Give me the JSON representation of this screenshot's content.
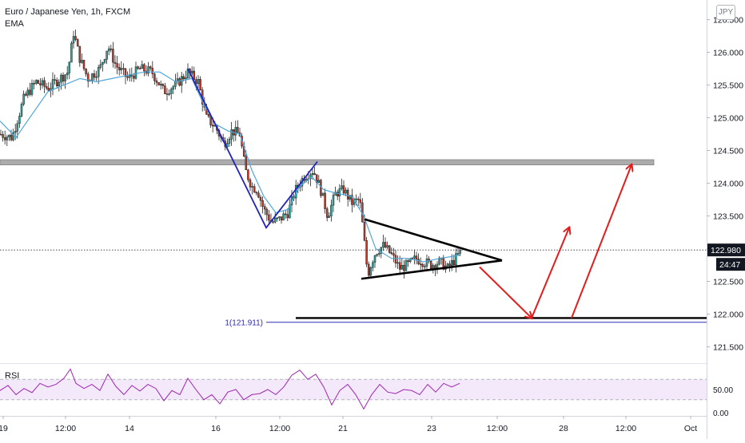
{
  "header": {
    "symbol_title": "Euro / Japanese Yen, 1h, FXCM",
    "indicator": "EMA",
    "currency_badge": "JPY"
  },
  "rsi_panel": {
    "label": "RSI",
    "ticks": [
      "50.00",
      "0.00"
    ]
  },
  "price_scale": {
    "current_price": "122.980",
    "countdown": "24:47"
  },
  "fib_label": "1(121.911)",
  "colors": {
    "bull": "#26a69a",
    "bear": "#c0392b",
    "ema": "#4fa6d9",
    "rsi": "#9c27b0",
    "pattern_blue": "#2222bb",
    "arrows": "#e31b1b",
    "resistance_band": "#9e9e9e"
  },
  "chart_data": {
    "type": "candlestick",
    "title": "Euro / Japanese Yen, 1h, FXCM",
    "y_axis": {
      "ticks": [
        126.5,
        126.0,
        125.5,
        125.0,
        124.5,
        124.0,
        123.5,
        123.0,
        122.5,
        122.0,
        121.5
      ],
      "range": [
        121.25,
        126.8
      ]
    },
    "x_axis": {
      "ticks": [
        "19",
        "12:00",
        "14",
        "16",
        "12:00",
        "21",
        "23",
        "12:00",
        "28",
        "12:00",
        "Oct"
      ]
    },
    "ema_curve": [
      [
        0,
        124.95
      ],
      [
        20,
        124.7
      ],
      [
        40,
        125.05
      ],
      [
        60,
        125.4
      ],
      [
        80,
        125.5
      ],
      [
        100,
        125.6
      ],
      [
        120,
        125.55
      ],
      [
        140,
        125.6
      ],
      [
        160,
        125.65
      ],
      [
        180,
        125.7
      ],
      [
        200,
        125.7
      ],
      [
        220,
        125.55
      ],
      [
        240,
        125.6
      ],
      [
        255,
        125.2
      ],
      [
        270,
        124.9
      ],
      [
        285,
        124.8
      ],
      [
        300,
        124.75
      ],
      [
        315,
        124.2
      ],
      [
        330,
        123.8
      ],
      [
        345,
        123.55
      ],
      [
        360,
        123.6
      ],
      [
        375,
        123.95
      ],
      [
        390,
        124.1
      ],
      [
        405,
        123.9
      ],
      [
        420,
        123.85
      ],
      [
        440,
        123.8
      ],
      [
        455,
        123.5
      ],
      [
        470,
        123.0
      ],
      [
        490,
        122.85
      ],
      [
        510,
        122.85
      ],
      [
        530,
        122.8
      ],
      [
        550,
        122.85
      ],
      [
        575,
        122.9
      ]
    ],
    "key_points": [
      [
        0,
        124.75
      ],
      [
        15,
        124.7
      ],
      [
        30,
        125.3
      ],
      [
        45,
        125.55
      ],
      [
        60,
        125.45
      ],
      [
        75,
        125.6
      ],
      [
        85,
        125.7
      ],
      [
        92,
        126.3
      ],
      [
        100,
        125.9
      ],
      [
        110,
        125.6
      ],
      [
        125,
        125.75
      ],
      [
        135,
        126.1
      ],
      [
        145,
        125.8
      ],
      [
        160,
        125.6
      ],
      [
        175,
        125.75
      ],
      [
        190,
        125.7
      ],
      [
        205,
        125.4
      ],
      [
        220,
        125.5
      ],
      [
        235,
        125.7
      ],
      [
        248,
        125.55
      ],
      [
        258,
        125.0
      ],
      [
        270,
        124.85
      ],
      [
        280,
        124.6
      ],
      [
        290,
        124.8
      ],
      [
        300,
        124.75
      ],
      [
        307,
        124.2
      ],
      [
        315,
        123.95
      ],
      [
        322,
        123.9
      ],
      [
        330,
        123.6
      ],
      [
        340,
        123.4
      ],
      [
        350,
        123.45
      ],
      [
        360,
        123.55
      ],
      [
        370,
        123.9
      ],
      [
        380,
        124.1
      ],
      [
        392,
        124.2
      ],
      [
        400,
        123.95
      ],
      [
        410,
        123.5
      ],
      [
        420,
        123.85
      ],
      [
        430,
        123.9
      ],
      [
        440,
        123.7
      ],
      [
        450,
        123.75
      ],
      [
        455,
        123.2
      ],
      [
        460,
        122.6
      ],
      [
        465,
        122.8
      ],
      [
        470,
        122.95
      ],
      [
        480,
        123.05
      ],
      [
        490,
        122.9
      ],
      [
        500,
        122.7
      ],
      [
        510,
        122.75
      ],
      [
        520,
        122.85
      ],
      [
        530,
        122.8
      ],
      [
        540,
        122.75
      ],
      [
        550,
        122.8
      ],
      [
        560,
        122.7
      ],
      [
        570,
        122.85
      ],
      [
        578,
        122.98
      ]
    ],
    "resistance_band": [
      124.28,
      124.36
    ],
    "support_line": 121.94,
    "fib_level": 121.911,
    "current_price": 122.98,
    "descending_channel_line": [
      [
        235,
        125.75
      ],
      [
        333,
        123.32
      ],
      [
        397,
        124.33
      ]
    ],
    "triangle": {
      "upper": [
        [
          456,
          123.45
        ],
        [
          628,
          122.82
        ]
      ],
      "lower": [
        [
          452,
          122.54
        ],
        [
          628,
          122.82
        ]
      ]
    },
    "projection_arrows": [
      [
        [
          600,
          122.72
        ],
        [
          665,
          121.94
        ]
      ],
      [
        [
          665,
          121.94
        ],
        [
          712,
          123.32
        ]
      ],
      [
        [
          715,
          121.94
        ],
        [
          790,
          124.28
        ]
      ]
    ],
    "rsi": {
      "range": [
        0,
        100
      ],
      "levels": [
        70,
        30
      ],
      "curve": [
        [
          0,
          48
        ],
        [
          10,
          58
        ],
        [
          20,
          40
        ],
        [
          30,
          52
        ],
        [
          40,
          44
        ],
        [
          50,
          62
        ],
        [
          60,
          55
        ],
        [
          70,
          60
        ],
        [
          80,
          72
        ],
        [
          88,
          90
        ],
        [
          95,
          62
        ],
        [
          105,
          52
        ],
        [
          115,
          60
        ],
        [
          125,
          48
        ],
        [
          135,
          80
        ],
        [
          145,
          56
        ],
        [
          155,
          40
        ],
        [
          165,
          58
        ],
        [
          175,
          47
        ],
        [
          185,
          60
        ],
        [
          195,
          52
        ],
        [
          205,
          28
        ],
        [
          215,
          48
        ],
        [
          225,
          40
        ],
        [
          235,
          72
        ],
        [
          245,
          50
        ],
        [
          255,
          30
        ],
        [
          265,
          40
        ],
        [
          275,
          22
        ],
        [
          285,
          45
        ],
        [
          295,
          50
        ],
        [
          305,
          30
        ],
        [
          315,
          40
        ],
        [
          325,
          42
        ],
        [
          335,
          50
        ],
        [
          345,
          40
        ],
        [
          355,
          55
        ],
        [
          365,
          78
        ],
        [
          375,
          88
        ],
        [
          385,
          70
        ],
        [
          395,
          80
        ],
        [
          405,
          55
        ],
        [
          415,
          20
        ],
        [
          425,
          48
        ],
        [
          435,
          60
        ],
        [
          445,
          40
        ],
        [
          455,
          12
        ],
        [
          465,
          40
        ],
        [
          475,
          60
        ],
        [
          485,
          45
        ],
        [
          495,
          42
        ],
        [
          505,
          50
        ],
        [
          515,
          48
        ],
        [
          525,
          40
        ],
        [
          535,
          60
        ],
        [
          545,
          45
        ],
        [
          555,
          62
        ],
        [
          565,
          55
        ],
        [
          575,
          62
        ]
      ]
    }
  }
}
